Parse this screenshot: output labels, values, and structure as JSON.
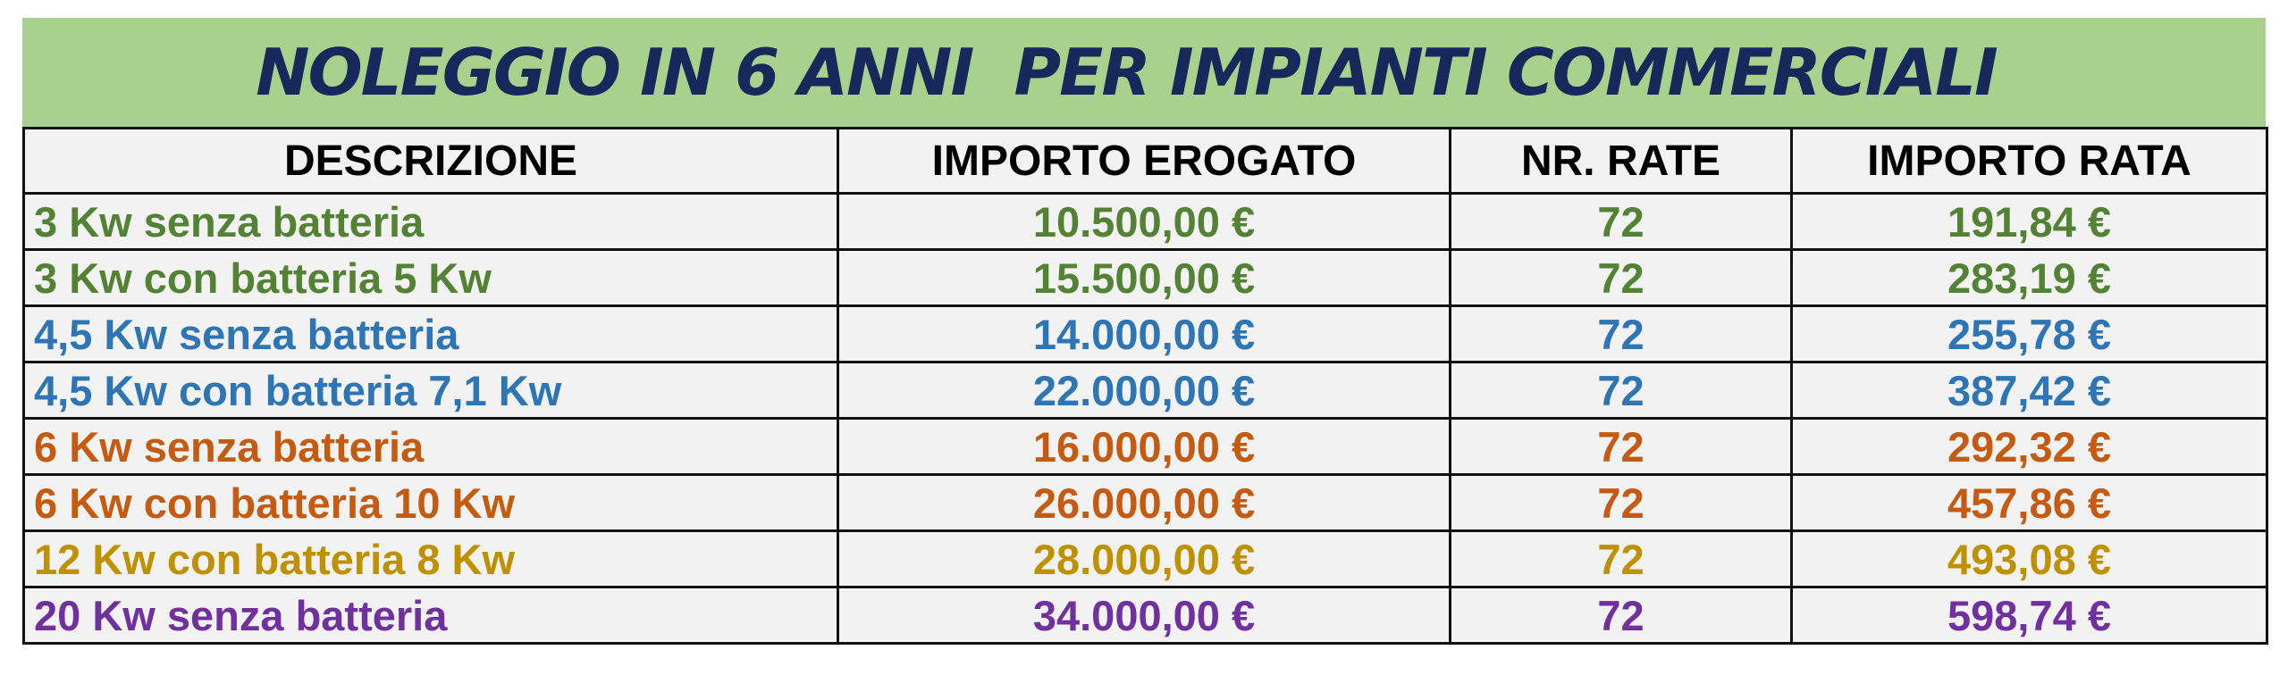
{
  "title": "NOLEGGIO IN 6 ANNI  PER IMPIANTI COMMERCIALI",
  "colors": {
    "title_bar": "#a9d18e",
    "title_text": "#17285a",
    "green": "#548235",
    "blue": "#2e75b6",
    "orange": "#c55a11",
    "gold": "#bf9000",
    "purple": "#7030a0"
  },
  "table": {
    "headers": [
      "DESCRIZIONE",
      "IMPORTO EROGATO",
      "NR. RATE",
      "IMPORTO RATA"
    ],
    "rows": [
      {
        "description": "3 Kw senza batteria",
        "amount": "10.500,00 €",
        "installments": "72",
        "installment_amount": "191,84 €",
        "color": "#548235"
      },
      {
        "description": "3 Kw con batteria 5 Kw",
        "amount": "15.500,00 €",
        "installments": "72",
        "installment_amount": "283,19 €",
        "color": "#548235"
      },
      {
        "description": "4,5 Kw senza batteria",
        "amount": "14.000,00 €",
        "installments": "72",
        "installment_amount": "255,78 €",
        "color": "#2e75b6"
      },
      {
        "description": "4,5 Kw con batteria 7,1 Kw",
        "amount": "22.000,00 €",
        "installments": "72",
        "installment_amount": "387,42 €",
        "color": "#2e75b6"
      },
      {
        "description": "6 Kw senza batteria",
        "amount": "16.000,00 €",
        "installments": "72",
        "installment_amount": "292,32 €",
        "color": "#c55a11"
      },
      {
        "description": "6 Kw con batteria 10 Kw",
        "amount": "26.000,00 €",
        "installments": "72",
        "installment_amount": "457,86 €",
        "color": "#c55a11"
      },
      {
        "description": "12 Kw con batteria 8 Kw",
        "amount": "28.000,00 €",
        "installments": "72",
        "installment_amount": "493,08 €",
        "color": "#bf9000"
      },
      {
        "description": "20 Kw senza batteria",
        "amount": "34.000,00 €",
        "installments": "72",
        "installment_amount": "598,74 €",
        "color": "#7030a0"
      }
    ]
  }
}
